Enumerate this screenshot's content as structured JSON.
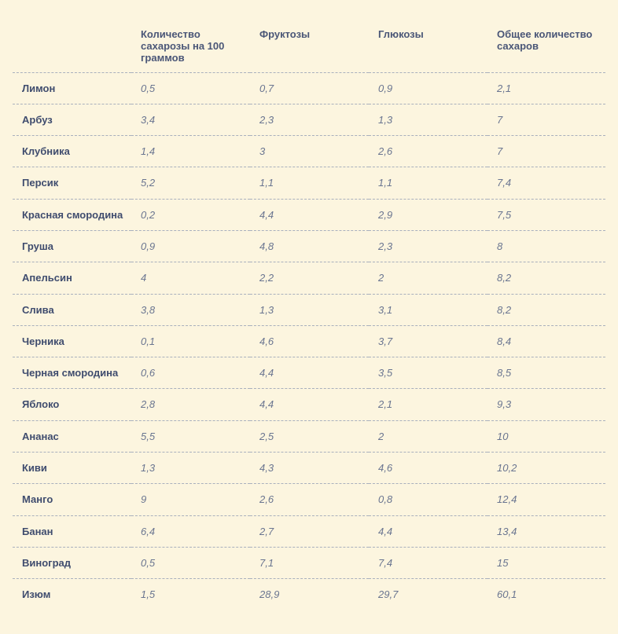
{
  "table": {
    "headers": [
      "",
      "Количество сахарозы на 100 граммов",
      "Фруктозы",
      "Глюкозы",
      "Общее количество сахаров"
    ],
    "rows": [
      [
        "Лимон",
        "0,5",
        "0,7",
        "0,9",
        "2,1"
      ],
      [
        "Арбуз",
        "3,4",
        "2,3",
        "1,3",
        "7"
      ],
      [
        "Клубника",
        "1,4",
        "3",
        "2,6",
        "7"
      ],
      [
        "Персик",
        "5,2",
        "1,1",
        "1,1",
        "7,4"
      ],
      [
        "Красная смородина",
        "0,2",
        "4,4",
        "2,9",
        "7,5"
      ],
      [
        "Груша",
        "0,9",
        "4,8",
        "2,3",
        "8"
      ],
      [
        "Апельсин",
        "4",
        "2,2",
        "2",
        "8,2"
      ],
      [
        "Слива",
        "3,8",
        "1,3",
        "3,1",
        "8,2"
      ],
      [
        "Черника",
        "0,1",
        "4,6",
        "3,7",
        "8,4"
      ],
      [
        "Черная смородина",
        "0,6",
        "4,4",
        "3,5",
        "8,5"
      ],
      [
        "Яблоко",
        "2,8",
        "4,4",
        "2,1",
        "9,3"
      ],
      [
        "Ананас",
        "5,5",
        "2,5",
        "2",
        "10"
      ],
      [
        "Киви",
        "1,3",
        "4,3",
        "4,6",
        "10,2"
      ],
      [
        "Манго",
        "9",
        "2,6",
        "0,8",
        "12,4"
      ],
      [
        "Банан",
        "6,4",
        "2,7",
        "4,4",
        "13,4"
      ],
      [
        "Виноград",
        "0,5",
        "7,1",
        "7,4",
        "15"
      ],
      [
        "Изюм",
        "1,5",
        "28,9",
        "29,7",
        "60,1"
      ]
    ]
  },
  "colors": {
    "background": "#fcf5df",
    "text": "#4a5677",
    "divider": "#a9b0bd"
  }
}
